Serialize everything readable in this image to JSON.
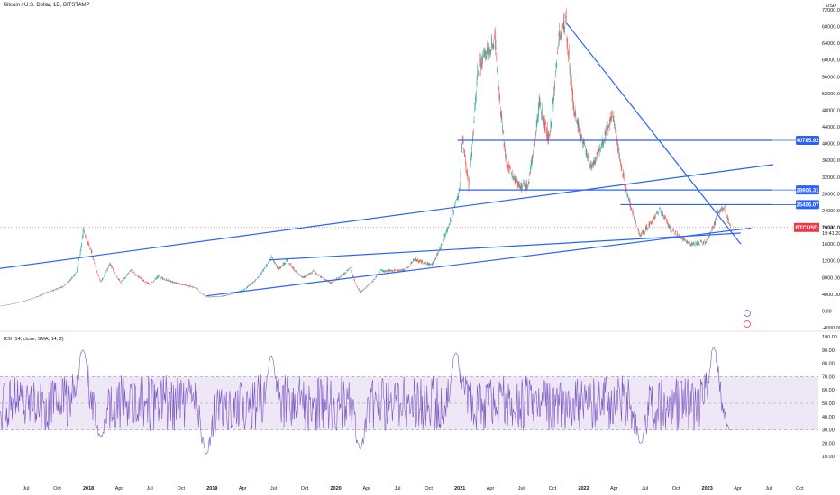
{
  "header": {
    "title": "Bitcoin / U.S. Dollar, 1D, BITSTAMP",
    "currency": "USD",
    "rsi_title": "RSI (14, close, SMA, 14, 2)"
  },
  "colors": {
    "up": "#26a69a",
    "down": "#ef5350",
    "trendline": "#2962ff",
    "rsi_line": "#7e57c2",
    "rsi_band": "#ede7f6",
    "price_line": "#f23645"
  },
  "chart_data": [
    {
      "type": "candlestick",
      "title": "Bitcoin / U.S. Dollar, 1D, BITSTAMP",
      "ylim": [
        -4000,
        72000
      ],
      "y_ticks": [
        "72000.00",
        "68000.00",
        "64000.00",
        "60000.00",
        "56000.00",
        "52000.00",
        "48000.00",
        "44000.00",
        "40000.00",
        "36000.00",
        "32000.00",
        "28000.00",
        "24000.00",
        "20000.00",
        "16000.00",
        "12000.00",
        "8000.00",
        "4000.00",
        "0.00",
        "-4000.00"
      ],
      "x_ticks": [
        "Jul",
        "Oct",
        "2018",
        "Apr",
        "Jul",
        "Oct",
        "2019",
        "Apr",
        "Jul",
        "Oct",
        "2020",
        "Apr",
        "Jul",
        "Oct",
        "2021",
        "Apr",
        "Jul",
        "Oct",
        "2022",
        "Apr",
        "Jul",
        "Oct",
        "2023",
        "Apr",
        "Jul",
        "Oct"
      ],
      "close_path": [
        [
          "2017-04-15",
          1200
        ],
        [
          "2017-07-01",
          2500
        ],
        [
          "2017-09-01",
          4500
        ],
        [
          "2017-10-15",
          5700
        ],
        [
          "2017-11-25",
          9000
        ],
        [
          "2017-12-17",
          19500
        ],
        [
          "2018-01-10",
          14000
        ],
        [
          "2018-02-06",
          7000
        ],
        [
          "2018-03-05",
          11500
        ],
        [
          "2018-04-06",
          6800
        ],
        [
          "2018-05-05",
          9800
        ],
        [
          "2018-07-01",
          6300
        ],
        [
          "2018-07-25",
          8200
        ],
        [
          "2018-09-01",
          7000
        ],
        [
          "2018-11-14",
          5600
        ],
        [
          "2018-12-15",
          3300
        ],
        [
          "2019-02-01",
          3500
        ],
        [
          "2019-04-03",
          5000
        ],
        [
          "2019-05-15",
          8000
        ],
        [
          "2019-06-26",
          13000
        ],
        [
          "2019-07-15",
          10000
        ],
        [
          "2019-08-10",
          12000
        ],
        [
          "2019-09-25",
          8000
        ],
        [
          "2019-10-27",
          9500
        ],
        [
          "2019-12-17",
          6700
        ],
        [
          "2020-02-13",
          10300
        ],
        [
          "2020-03-13",
          4500
        ],
        [
          "2020-05-10",
          9500
        ],
        [
          "2020-07-25",
          9700
        ],
        [
          "2020-08-17",
          12300
        ],
        [
          "2020-10-10",
          11000
        ],
        [
          "2020-11-20",
          18500
        ],
        [
          "2020-12-31",
          29000
        ],
        [
          "2021-01-08",
          41500
        ],
        [
          "2021-01-27",
          30000
        ],
        [
          "2021-02-21",
          57000
        ],
        [
          "2021-03-13",
          61000
        ],
        [
          "2021-04-14",
          64800
        ],
        [
          "2021-05-19",
          35000
        ],
        [
          "2021-06-22",
          30000
        ],
        [
          "2021-07-20",
          29800
        ],
        [
          "2021-08-23",
          50000
        ],
        [
          "2021-09-21",
          41000
        ],
        [
          "2021-10-20",
          66000
        ],
        [
          "2021-11-10",
          69000
        ],
        [
          "2021-12-04",
          48000
        ],
        [
          "2022-01-24",
          34000
        ],
        [
          "2022-03-28",
          47400
        ],
        [
          "2022-05-12",
          27000
        ],
        [
          "2022-06-18",
          18000
        ],
        [
          "2022-08-14",
          24500
        ],
        [
          "2022-09-15",
          19500
        ],
        [
          "2022-11-09",
          16000
        ],
        [
          "2022-12-30",
          16500
        ],
        [
          "2023-01-31",
          23000
        ],
        [
          "2023-02-20",
          25000
        ],
        [
          "2023-03-10",
          19940
        ]
      ],
      "horizontal_levels": [
        {
          "value": 40785.92,
          "label": "40785.92",
          "from": "2020-12-25",
          "to": "2023-07-10"
        },
        {
          "value": 28906.31,
          "label": "28906.31",
          "from": "2020-12-28",
          "to": "2023-07-10"
        },
        {
          "value": 25406.07,
          "label": "25406.07",
          "from": "2022-04-20",
          "to": "2023-07-10"
        }
      ],
      "trendlines": [
        {
          "from": [
            "2017-04-01",
            10000
          ],
          "to": [
            "2023-07-15",
            35000
          ]
        },
        {
          "from": [
            "2018-12-15",
            3600
          ],
          "to": [
            "2023-05-10",
            19800
          ]
        },
        {
          "from": [
            "2019-06-20",
            12200
          ],
          "to": [
            "2023-04-10",
            18600
          ]
        },
        {
          "from": [
            "2021-11-10",
            69000
          ],
          "to": [
            "2023-04-10",
            16000
          ]
        }
      ],
      "last_price": {
        "label": "19940.00",
        "symbol_tag": "BTCUSD",
        "time_tag": "19:41:20",
        "value": 19940
      }
    },
    {
      "type": "line",
      "title": "RSI (14, close, SMA, 14, 2)",
      "ylim": [
        0,
        100
      ],
      "y_ticks": [
        "100.00",
        "90.00",
        "80.00",
        "70.00",
        "60.00",
        "50.00",
        "40.00",
        "30.00",
        "20.00",
        "10.00"
      ],
      "bands": [
        30,
        50,
        70
      ],
      "current_value": 30,
      "peaks": [
        [
          "2017-12-15",
          90
        ],
        [
          "2018-02-06",
          25
        ],
        [
          "2018-12-15",
          12
        ],
        [
          "2019-06-25",
          85
        ],
        [
          "2020-03-13",
          16
        ],
        [
          "2020-12-20",
          88
        ],
        [
          "2022-06-18",
          20
        ],
        [
          "2023-01-20",
          92
        ],
        [
          "2023-03-10",
          30
        ]
      ]
    }
  ]
}
